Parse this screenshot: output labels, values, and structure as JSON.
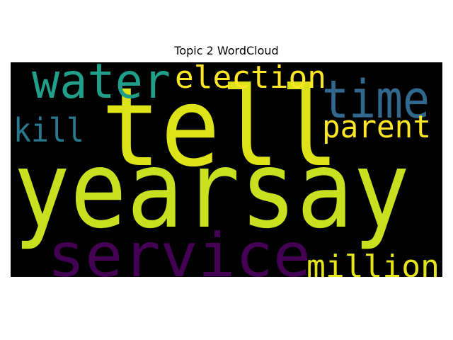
{
  "title": "Topic 2 WordCloud",
  "background_color": "#000000",
  "words": [
    {
      "text": "tell",
      "color": "#dde318"
    },
    {
      "text": "yearsay",
      "color": "#c8e020"
    },
    {
      "text": "service",
      "color": "#440154"
    },
    {
      "text": "water",
      "color": "#1f9e89"
    },
    {
      "text": "election",
      "color": "#fde725"
    },
    {
      "text": "time",
      "color": "#31688e"
    },
    {
      "text": "parent",
      "color": "#fde725"
    },
    {
      "text": "kill",
      "color": "#2a788e"
    },
    {
      "text": "million",
      "color": "#e5e419"
    }
  ]
}
